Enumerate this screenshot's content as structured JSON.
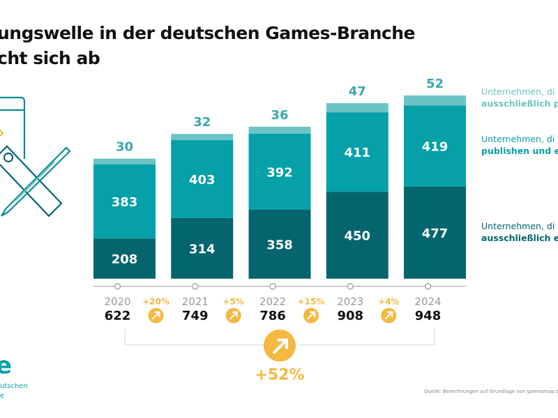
{
  "title": {
    "line1": "ungswelle in der deutschen Games-Branche",
    "line2": "cht sich ab"
  },
  "legend": [
    {
      "line1": "Unternehmen, di",
      "line2": "ausschließlich pu",
      "color": "#6cc3c6"
    },
    {
      "line1": "Unternehmen, di",
      "line2": "publishen und en",
      "color": "#06a0a8"
    },
    {
      "line1": "Unternehmen, di",
      "line2": "ausschließlich en",
      "color": "#04656f"
    }
  ],
  "chart_data": {
    "type": "bar",
    "stacked": true,
    "categories": [
      "2020",
      "2021",
      "2022",
      "2023",
      "2024"
    ],
    "series": [
      {
        "values": [
          208,
          314,
          358,
          450,
          477
        ],
        "color": "#04656f"
      },
      {
        "values": [
          383,
          403,
          392,
          411,
          419
        ],
        "color": "#06a0a8"
      },
      {
        "values": [
          30,
          32,
          36,
          47,
          52
        ],
        "color": "#6cc3c6"
      }
    ],
    "totals": [
      "622",
      "749",
      "786",
      "908",
      "948"
    ],
    "growth": [
      "+20%",
      "+5%",
      "+15%",
      "+4%"
    ],
    "overall_growth": "+52%",
    "accent_color": "#f5b942"
  },
  "logo": {
    "text": "e",
    "subtitle": "utschen\ne"
  },
  "source": "Quelle: Berechnungen auf Grundlage von gamesmap.de; S"
}
